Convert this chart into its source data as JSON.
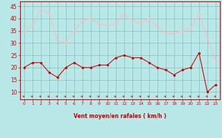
{
  "x": [
    0,
    1,
    2,
    3,
    4,
    5,
    6,
    7,
    8,
    9,
    10,
    11,
    12,
    13,
    14,
    15,
    16,
    17,
    18,
    19,
    20,
    21,
    22,
    23
  ],
  "wind_avg": [
    20,
    22,
    22,
    18,
    16,
    20,
    22,
    20,
    20,
    21,
    21,
    24,
    25,
    24,
    24,
    22,
    20,
    19,
    17,
    19,
    20,
    26,
    10,
    13
  ],
  "wind_gust": [
    35,
    37,
    44,
    42,
    31,
    30,
    35,
    39,
    40,
    38,
    37,
    38,
    42,
    39,
    38,
    40,
    37,
    34,
    34,
    35,
    36,
    42,
    32,
    23
  ],
  "avg_color": "#cc0000",
  "gust_color": "#ffbbbb",
  "bg_color": "#b8e8e8",
  "grid_color": "#88bbbb",
  "xlabel": "Vent moyen/en rafales ( km/h )",
  "tick_color": "#cc0000",
  "yticks": [
    10,
    15,
    20,
    25,
    30,
    35,
    40,
    45
  ],
  "ylim": [
    7,
    47
  ],
  "xlim": [
    -0.5,
    23.5
  ]
}
